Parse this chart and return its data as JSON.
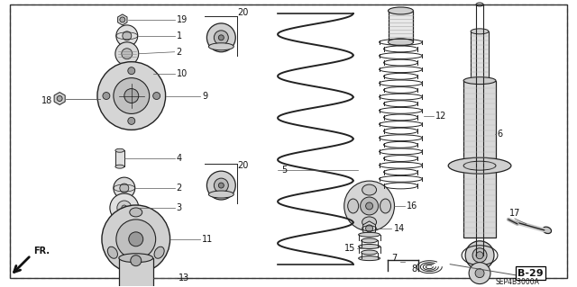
{
  "bg_color": "#ffffff",
  "border_color": "#333333",
  "line_color": "#222222",
  "fig_width": 6.4,
  "fig_height": 3.19,
  "dpi": 100,
  "diagram_code": "SEP4B3000A",
  "page_code": "B-29"
}
